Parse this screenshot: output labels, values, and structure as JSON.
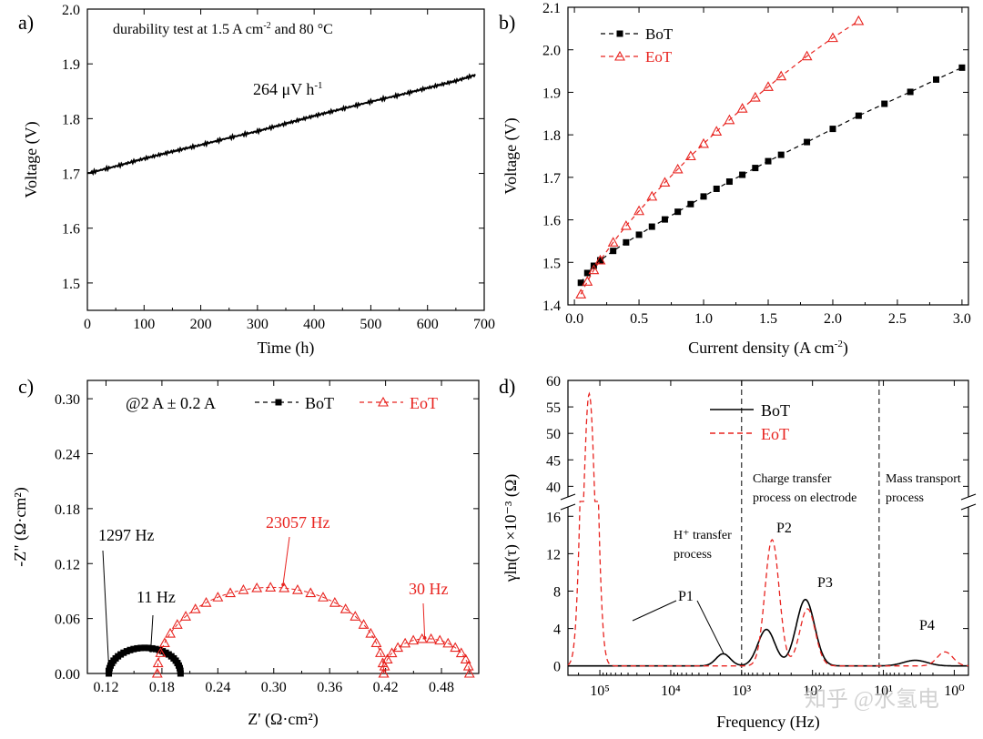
{
  "chart_data": [
    {
      "id": "a",
      "panel_label": "a)",
      "type": "line",
      "title": "",
      "xlabel": "Time (h)",
      "ylabel": "Voltage (V)",
      "xlim": [
        0,
        700
      ],
      "ylim": [
        1.45,
        2.0
      ],
      "xticks": [
        0,
        100,
        200,
        300,
        400,
        500,
        600,
        700
      ],
      "yticks": [
        1.5,
        1.6,
        1.7,
        1.8,
        1.9,
        2.0
      ],
      "annotation": "durability test at 1.5 A cm",
      "annotation_sup": "-2",
      "annotation_tail": " and 80 °C",
      "rate_label": "264 μV h",
      "rate_sup": "-1",
      "series": [
        {
          "name": "durability",
          "x": [
            0,
            50,
            100,
            150,
            200,
            250,
            300,
            350,
            400,
            450,
            500,
            550,
            600,
            650,
            685
          ],
          "y": [
            1.7,
            1.713,
            1.727,
            1.74,
            1.752,
            1.765,
            1.777,
            1.791,
            1.805,
            1.818,
            1.831,
            1.843,
            1.856,
            1.869,
            1.88
          ]
        }
      ]
    },
    {
      "id": "b",
      "panel_label": "b)",
      "type": "line",
      "title": "",
      "xlabel": "Current density (A cm",
      "xlabel_sup": "-2",
      "xlabel_tail": ")",
      "ylabel": "Voltage (V)",
      "xlim": [
        -0.05,
        3.05
      ],
      "ylim": [
        1.4,
        2.1
      ],
      "xticks": [
        0.0,
        0.5,
        1.0,
        1.5,
        2.0,
        2.5,
        3.0
      ],
      "xtick_labels": [
        "0.0",
        "0.5",
        "1.0",
        "1.5",
        "2.0",
        "2.5",
        "3.0"
      ],
      "yticks": [
        1.4,
        1.5,
        1.6,
        1.7,
        1.8,
        1.9,
        2.0,
        2.1
      ],
      "ytick_labels": [
        "1.4",
        "1.5",
        "1.6",
        "1.7",
        "1.8",
        "1.9",
        "2.0",
        "2.1"
      ],
      "legend_position": "top-left",
      "series": [
        {
          "name": "BoT",
          "color": "#000000",
          "marker": "square",
          "x": [
            0.05,
            0.1,
            0.15,
            0.2,
            0.3,
            0.4,
            0.5,
            0.6,
            0.7,
            0.8,
            0.9,
            1.0,
            1.1,
            1.2,
            1.3,
            1.4,
            1.5,
            1.6,
            1.8,
            2.0,
            2.2,
            2.4,
            2.6,
            2.8,
            3.0
          ],
          "y": [
            1.452,
            1.475,
            1.492,
            1.505,
            1.527,
            1.547,
            1.565,
            1.584,
            1.601,
            1.619,
            1.637,
            1.655,
            1.673,
            1.69,
            1.706,
            1.722,
            1.738,
            1.753,
            1.783,
            1.814,
            1.845,
            1.873,
            1.901,
            1.93,
            1.958
          ]
        },
        {
          "name": "EoT",
          "color": "#e8231f",
          "marker": "triangle-open",
          "x": [
            0.05,
            0.1,
            0.15,
            0.2,
            0.3,
            0.4,
            0.5,
            0.6,
            0.7,
            0.8,
            0.9,
            1.0,
            1.1,
            1.2,
            1.3,
            1.4,
            1.5,
            1.6,
            1.8,
            2.0,
            2.2
          ],
          "y": [
            1.425,
            1.455,
            1.482,
            1.505,
            1.547,
            1.586,
            1.621,
            1.655,
            1.688,
            1.719,
            1.75,
            1.779,
            1.808,
            1.835,
            1.862,
            1.888,
            1.913,
            1.938,
            1.985,
            2.028,
            2.068
          ]
        }
      ]
    },
    {
      "id": "c",
      "panel_label": "c)",
      "type": "scatter",
      "title": "",
      "xlabel": "Z' (Ω·cm²)",
      "ylabel": "-Z\" (Ω·cm²)",
      "xlim": [
        0.1,
        0.52
      ],
      "ylim": [
        0,
        0.32
      ],
      "xticks": [
        0.12,
        0.18,
        0.24,
        0.3,
        0.36,
        0.42,
        0.48
      ],
      "xtick_labels": [
        "0.12",
        "0.18",
        "0.24",
        "0.30",
        "0.36",
        "0.42",
        "0.48"
      ],
      "yticks": [
        0,
        0.06,
        0.12,
        0.18,
        0.24,
        0.3
      ],
      "ytick_labels": [
        "0.00",
        "0.06",
        "0.12",
        "0.18",
        "0.24",
        "0.30"
      ],
      "condition_label": "@2 A ± 0.2 A",
      "legend_position": "top",
      "annotations": [
        {
          "text": "1297 Hz",
          "color": "#000000",
          "x": 0.123,
          "y": 0.003
        },
        {
          "text": "11 Hz",
          "color": "#000000",
          "x": 0.168,
          "y": 0.021
        },
        {
          "text": "23057 Hz",
          "color": "#e8231f",
          "x": 0.31,
          "y": 0.093
        },
        {
          "text": "30 Hz",
          "color": "#e8231f",
          "x": 0.462,
          "y": 0.035
        }
      ],
      "series": [
        {
          "name": "BoT",
          "color": "#000000",
          "marker": "square",
          "arcs": [
            {
              "x_start": 0.123,
              "x_end": 0.2,
              "peak": 0.028,
              "n": 30
            }
          ]
        },
        {
          "name": "EoT",
          "color": "#e8231f",
          "marker": "triangle-open",
          "arcs": [
            {
              "x_start": 0.175,
              "x_end": 0.418,
              "peak": 0.094,
              "n": 26
            },
            {
              "x_start": 0.418,
              "x_end": 0.51,
              "peak": 0.038,
              "n": 15
            }
          ]
        }
      ]
    },
    {
      "id": "d",
      "panel_label": "d)",
      "type": "line",
      "title": "",
      "xlabel": "Frequency (Hz)",
      "ylabel": "γln(τ) ×10⁻³ (Ω)",
      "x_scale": "log-reversed",
      "xlim_log10": [
        5.45,
        -0.2
      ],
      "ylim_lower": [
        -1,
        17
      ],
      "ylim_upper": [
        38,
        60
      ],
      "yticks_lower": [
        0,
        4,
        8,
        12,
        16
      ],
      "yticks_upper": [
        40,
        45,
        50,
        55,
        60
      ],
      "xticks_log10": [
        5,
        4,
        3,
        2,
        1,
        0
      ],
      "xtick_labels": [
        "10⁵",
        "10⁴",
        "10³",
        "10²",
        "10¹",
        "10⁰"
      ],
      "legend_position": "top",
      "region_dividers_log10": [
        3.0,
        1.06
      ],
      "region_labels": [
        {
          "lines": [
            "H⁺ transfer",
            "process"
          ]
        },
        {
          "lines": [
            "Charge transfer",
            "process on electrode"
          ]
        },
        {
          "lines": [
            "Mass transport",
            "process"
          ]
        }
      ],
      "peak_labels": [
        "P1",
        "P2",
        "P3",
        "P4"
      ],
      "series": [
        {
          "name": "BoT",
          "color": "#000000",
          "style": "solid",
          "peaks": [
            {
              "log10f": 3.26,
              "height": 1.3,
              "width": 0.1
            },
            {
              "log10f": 2.65,
              "height": 3.9,
              "width": 0.12
            },
            {
              "log10f": 2.1,
              "height": 7.1,
              "width": 0.13
            },
            {
              "log10f": 0.55,
              "height": 0.6,
              "width": 0.17
            }
          ]
        },
        {
          "name": "EoT",
          "color": "#e8231f",
          "style": "dashed",
          "peaks": [
            {
              "log10f": 5.15,
              "height": 57.5,
              "width": 0.085
            },
            {
              "log10f": 2.57,
              "height": 13.5,
              "width": 0.1
            },
            {
              "log10f": 2.07,
              "height": 6.1,
              "width": 0.11
            },
            {
              "log10f": 0.13,
              "height": 1.5,
              "width": 0.11
            }
          ]
        }
      ]
    }
  ],
  "watermark": "知乎 @水氢电"
}
